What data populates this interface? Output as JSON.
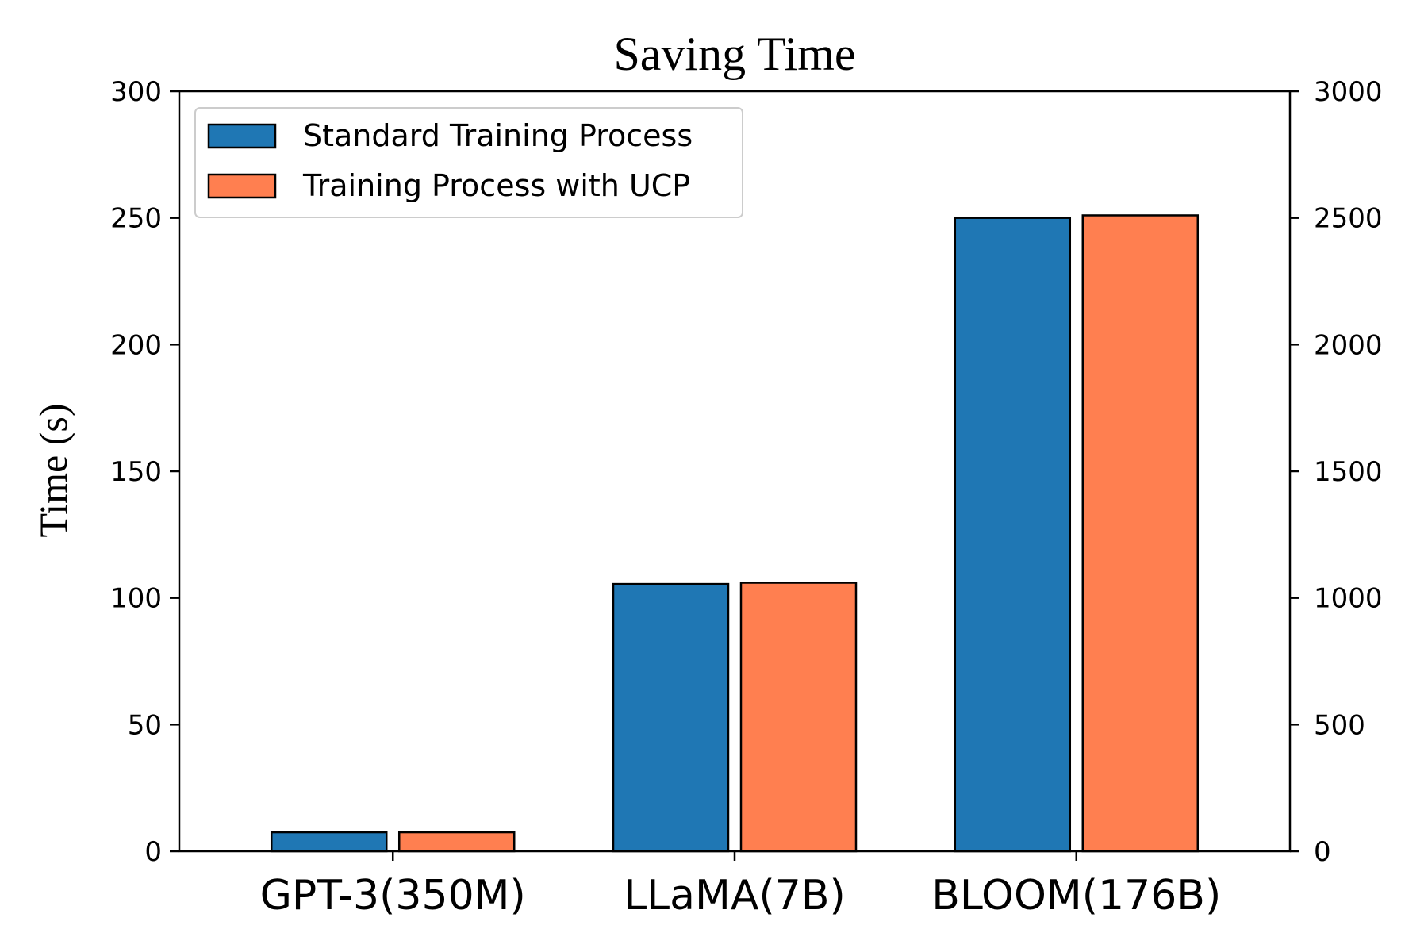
{
  "chart_data": {
    "type": "bar",
    "title": "Saving Time",
    "ylabel": "Time (s)",
    "xlabel": "",
    "categories": [
      "GPT-3(350M)",
      "LLaMA(7B)",
      "BLOOM(176B)"
    ],
    "series": [
      {
        "name": "Standard Training Process",
        "color": "#1f77b4",
        "values": [
          7.5,
          105.5,
          250
        ]
      },
      {
        "name": "Training Process with UCP",
        "color": "#ff7f50",
        "values": [
          7.5,
          106,
          251
        ]
      }
    ],
    "ylim": [
      0,
      300
    ],
    "yticks": [
      0,
      50,
      100,
      150,
      200,
      250,
      300
    ],
    "y2lim": [
      0,
      3000
    ],
    "y2ticks": [
      0,
      500,
      1000,
      1500,
      2000,
      2500,
      3000
    ],
    "grid": false,
    "legend_position": "top-left"
  }
}
